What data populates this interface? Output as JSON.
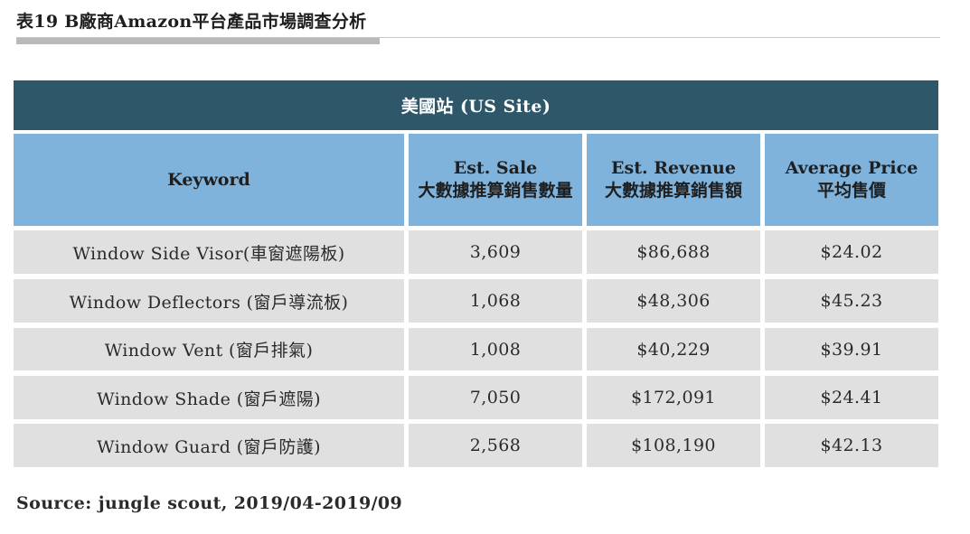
{
  "title": "表19 B廠商Amazon平台產品市場調查分析",
  "table": {
    "site_header": "美國站 (US Site)",
    "columns": [
      {
        "line1": "Keyword",
        "line2": ""
      },
      {
        "line1": "Est. Sale",
        "line2": "大數據推算銷售數量"
      },
      {
        "line1": "Est. Revenue",
        "line2": "大數據推算銷售額"
      },
      {
        "line1": "Average Price",
        "line2": "平均售價"
      }
    ],
    "rows": [
      {
        "keyword": "Window Side Visor(車窗遮陽板)",
        "sale": "3,609",
        "revenue": "$86,688",
        "price": "$24.02"
      },
      {
        "keyword": "Window Deflectors (窗戶導流板)",
        "sale": "1,068",
        "revenue": "$48,306",
        "price": "$45.23"
      },
      {
        "keyword": "Window Vent (窗戶排氣)",
        "sale": "1,008",
        "revenue": "$40,229",
        "price": "$39.91"
      },
      {
        "keyword": "Window Shade (窗戶遮陽)",
        "sale": "7,050",
        "revenue": "$172,091",
        "price": "$24.41"
      },
      {
        "keyword": "Window Guard (窗戶防護)",
        "sale": "2,568",
        "revenue": "$108,190",
        "price": "$42.13"
      }
    ]
  },
  "source": "Source: jungle scout, 2019/04-2019/09",
  "colors": {
    "site_header_bg": "#2e5769",
    "column_header_bg": "#80b3dc",
    "row_bg": "#e0e0e0"
  }
}
